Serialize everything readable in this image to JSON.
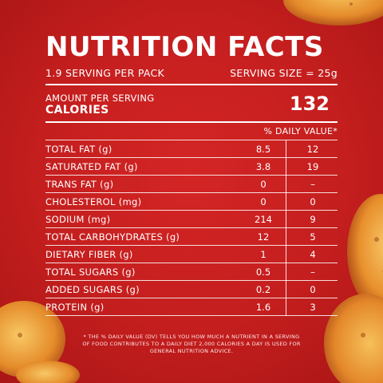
{
  "title": "NUTRITION FACTS",
  "servings_per_pack": "1.9 SERVING PER PACK",
  "serving_size": "SERVING SIZE = 25g",
  "amount_per_serving": "AMOUNT PER SERVING",
  "calories_label": "CALORIES",
  "calories_value": "132",
  "daily_value_header": "% DAILY VALUE*",
  "nutrients": [
    {
      "name": "TOTAL FAT (g)",
      "value": "8.5",
      "dv": "12"
    },
    {
      "name": "SATURATED FAT (g)",
      "value": "3.8",
      "dv": "19"
    },
    {
      "name": "TRANS FAT (g)",
      "value": "0",
      "dv": "–"
    },
    {
      "name": "CHOLESTEROL (mg)",
      "value": "0",
      "dv": "0"
    },
    {
      "name": "SODIUM (mg)",
      "value": "214",
      "dv": "9"
    },
    {
      "name": "TOTAL CARBOHYDRATES (g)",
      "value": "12",
      "dv": "5"
    },
    {
      "name": "DIETARY FIBER (g)",
      "value": "1",
      "dv": "4"
    },
    {
      "name": "TOTAL SUGARS (g)",
      "value": "0.5",
      "dv": "–"
    },
    {
      "name": "ADDED SUGARS (g)",
      "value": "0.2",
      "dv": "0"
    },
    {
      "name": "PROTEIN (g)",
      "value": "1.6",
      "dv": "3"
    }
  ],
  "footnote": "* THE % DAILY VALUE (DV) TELLS YOU HOW MUCH A NUTRIENT IN A SERVING OF FOOD CONTRIBUTES TO A DAILY DIET 2,000 CALORIES A DAY IS USED FOR GENERAL NUTRITION ADVICE.",
  "colors": {
    "background": "#c41e1e",
    "text": "#ffffff",
    "chip": "#f0a23a"
  }
}
